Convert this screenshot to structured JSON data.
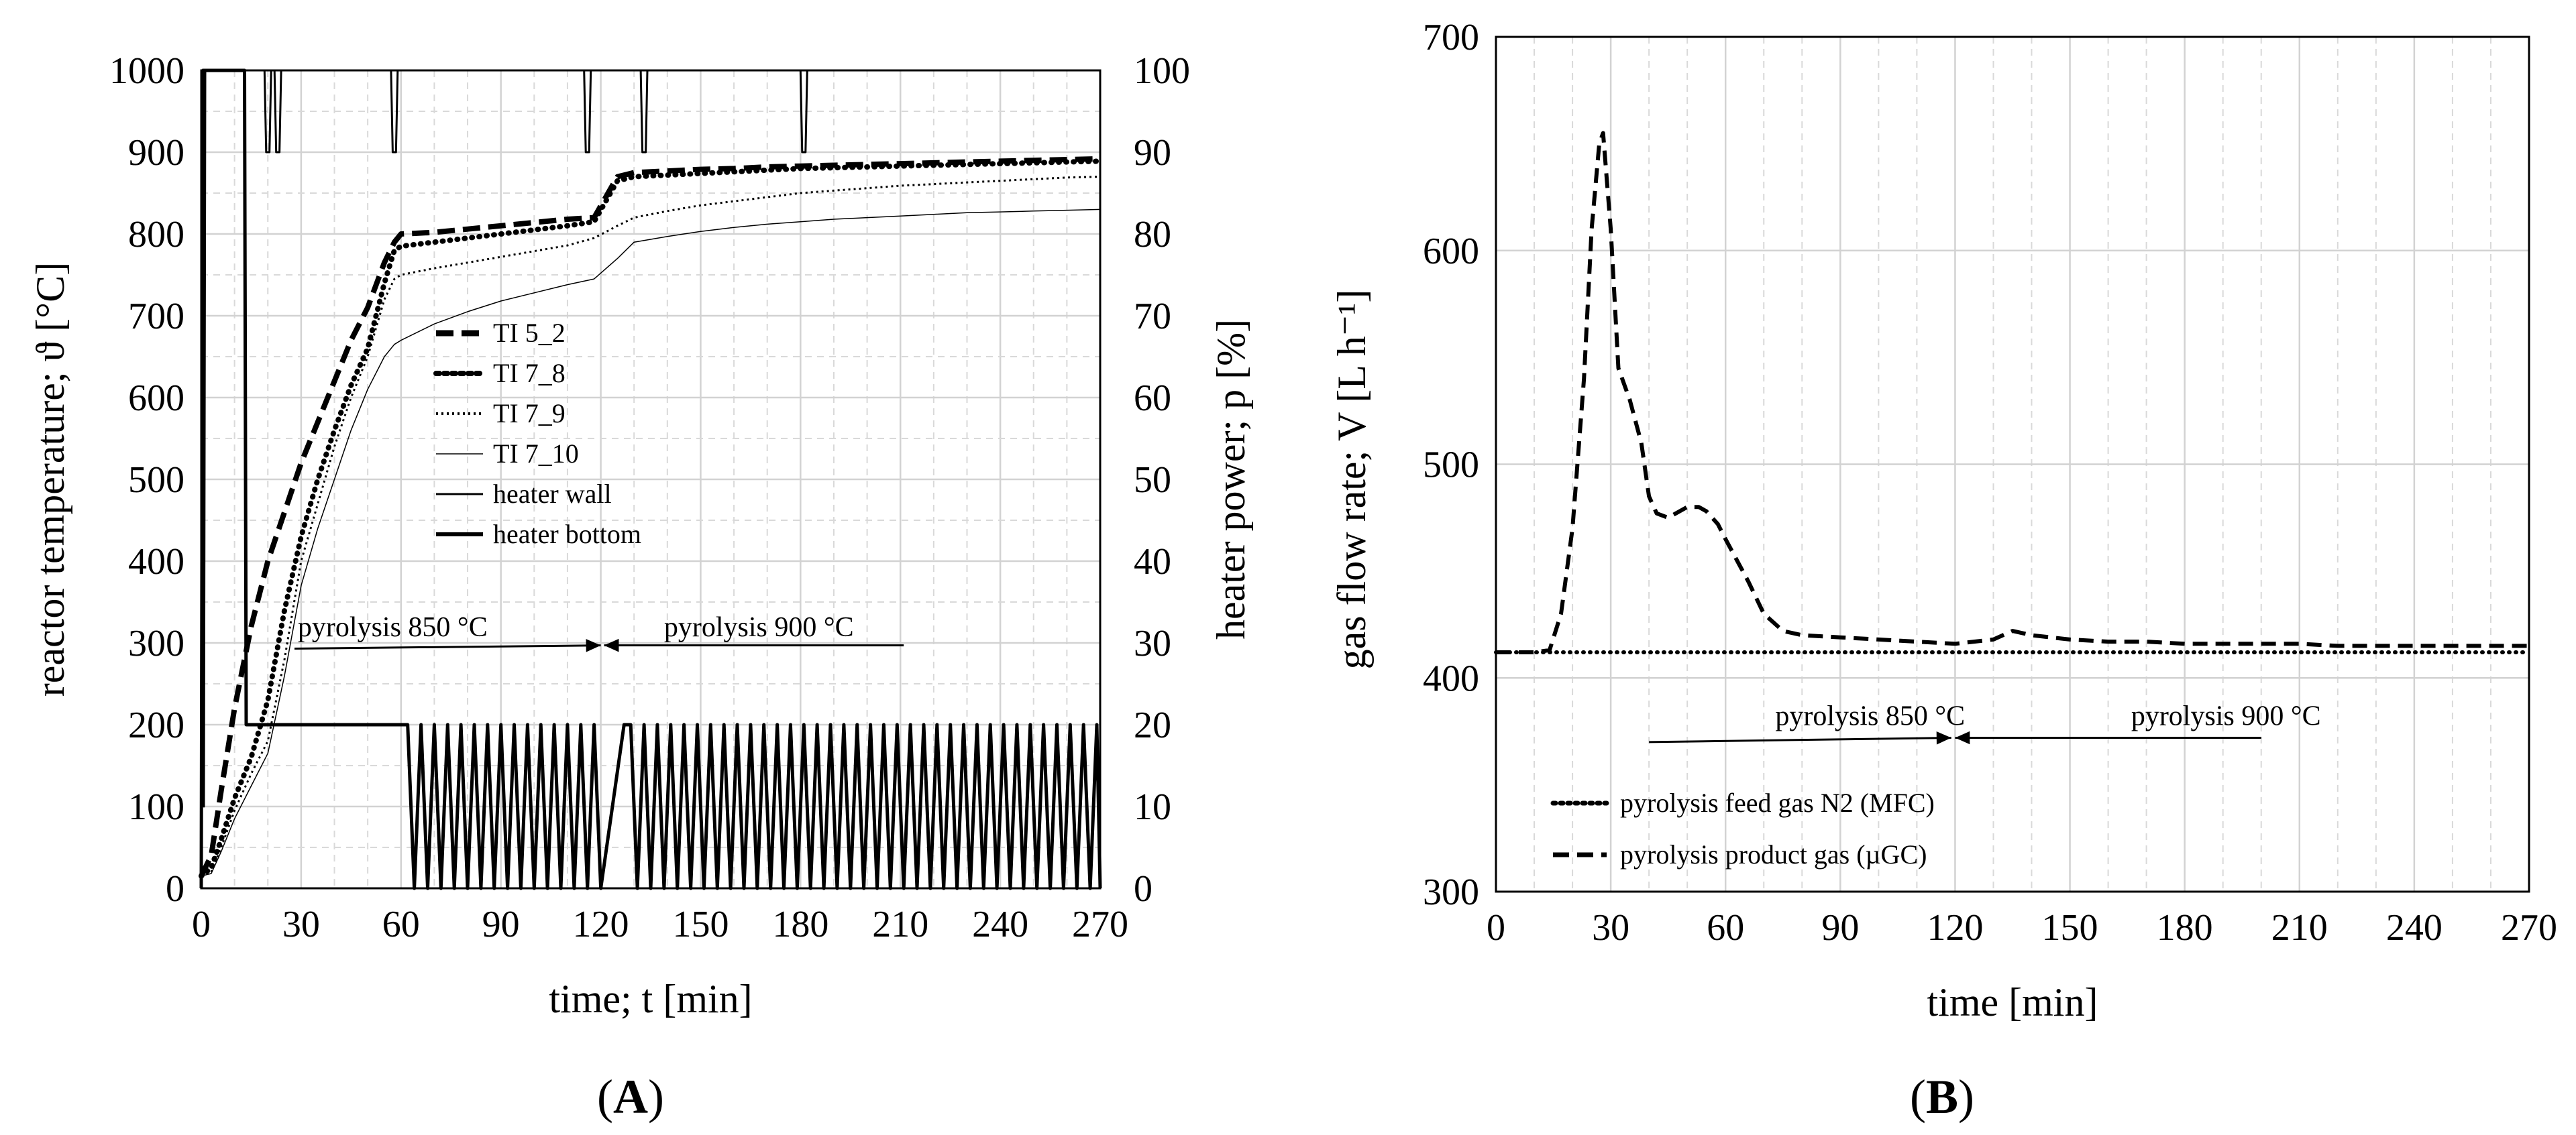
{
  "chart_data": [
    {
      "panel_label": "(A)",
      "panel_label_letter": "A",
      "type": "line",
      "title": "",
      "xlabel": "time; t [min]",
      "ylabel": "reactor temperature; ϑ [°C]",
      "y2label": "heater power; p [%]",
      "xlim": [
        0,
        270
      ],
      "ylim": [
        0,
        1000
      ],
      "y2lim": [
        0,
        100
      ],
      "xticks": [
        "0",
        "30",
        "60",
        "90",
        "120",
        "150",
        "180",
        "210",
        "240",
        "270"
      ],
      "yticks": [
        "0",
        "100",
        "200",
        "300",
        "400",
        "500",
        "600",
        "700",
        "800",
        "900",
        "1000"
      ],
      "y2ticks": [
        "0",
        "10",
        "20",
        "30",
        "40",
        "50",
        "60",
        "70",
        "80",
        "90",
        "100"
      ],
      "grid": true,
      "legend_position": "center-left",
      "annotations": [
        {
          "text": "pyrolysis 850 °C",
          "x": 29,
          "y": 308
        },
        {
          "text": "pyrolysis 900 °C",
          "x": 139,
          "y": 308
        }
      ],
      "arrows": [
        {
          "from": [
            28,
            293
          ],
          "to": [
            120,
            297
          ]
        },
        {
          "from": [
            211,
            297
          ],
          "to": [
            121,
            297
          ]
        }
      ],
      "series": [
        {
          "name": "TI 5_2",
          "axis": "left",
          "style": "dashed-thick",
          "x": [
            0,
            3,
            6,
            10,
            15,
            20,
            25,
            30,
            35,
            40,
            45,
            50,
            55,
            58,
            60,
            70,
            80,
            90,
            100,
            110,
            118,
            125,
            130,
            140,
            150,
            160,
            170,
            180,
            190,
            200,
            210,
            220,
            230,
            240,
            250,
            260,
            270
          ],
          "y": [
            15,
            40,
            120,
            220,
            320,
            400,
            460,
            520,
            570,
            620,
            670,
            710,
            765,
            790,
            800,
            802,
            806,
            810,
            814,
            818,
            820,
            870,
            875,
            877,
            879,
            880,
            882,
            883,
            884,
            885,
            886,
            887,
            888,
            889,
            890,
            891,
            892
          ]
        },
        {
          "name": "TI 7_8",
          "axis": "left",
          "style": "dotted-thick",
          "x": [
            0,
            3,
            6,
            10,
            15,
            20,
            25,
            30,
            35,
            40,
            45,
            50,
            55,
            58,
            60,
            70,
            80,
            90,
            100,
            110,
            118,
            125,
            130,
            140,
            150,
            160,
            170,
            180,
            190,
            200,
            210,
            220,
            230,
            240,
            250,
            260,
            270
          ],
          "y": [
            15,
            25,
            60,
            110,
            160,
            230,
            340,
            430,
            500,
            560,
            615,
            660,
            740,
            780,
            785,
            790,
            795,
            800,
            805,
            810,
            815,
            865,
            870,
            872,
            874,
            876,
            878,
            880,
            881,
            882,
            883,
            884,
            885,
            886,
            887,
            888,
            889
          ]
        },
        {
          "name": "TI 7_9",
          "axis": "left",
          "style": "dotted-thin",
          "x": [
            0,
            3,
            6,
            10,
            15,
            20,
            25,
            30,
            35,
            40,
            45,
            50,
            55,
            58,
            60,
            70,
            80,
            90,
            100,
            110,
            118,
            125,
            130,
            140,
            150,
            160,
            170,
            180,
            190,
            200,
            210,
            220,
            230,
            240,
            250,
            260,
            270
          ],
          "y": [
            15,
            20,
            50,
            95,
            140,
            180,
            280,
            400,
            470,
            540,
            600,
            650,
            720,
            745,
            750,
            758,
            765,
            772,
            779,
            786,
            795,
            810,
            820,
            828,
            835,
            840,
            845,
            850,
            853,
            856,
            859,
            861,
            863,
            865,
            867,
            869,
            870
          ]
        },
        {
          "name": "TI 7_10",
          "axis": "left",
          "style": "thin",
          "x": [
            0,
            3,
            6,
            10,
            15,
            20,
            25,
            30,
            35,
            40,
            45,
            50,
            55,
            58,
            60,
            70,
            80,
            90,
            100,
            110,
            118,
            125,
            130,
            140,
            150,
            160,
            170,
            180,
            190,
            200,
            210,
            220,
            230,
            240,
            250,
            260,
            270
          ],
          "y": [
            15,
            18,
            45,
            85,
            125,
            165,
            260,
            370,
            440,
            500,
            560,
            610,
            650,
            665,
            670,
            690,
            705,
            718,
            728,
            738,
            745,
            770,
            790,
            797,
            803,
            808,
            812,
            815,
            818,
            820,
            822,
            824,
            826,
            827,
            828,
            829,
            830
          ]
        },
        {
          "name": "heater wall",
          "axis": "right",
          "style": "thin-solid",
          "x": [
            0,
            0.5,
            0.8,
            1.2,
            1.6,
            19,
            19.5,
            20.5,
            21,
            22,
            22.5,
            23.5,
            24,
            57,
            57.5,
            58.5,
            59,
            115,
            115.5,
            116.5,
            117,
            132,
            132.5,
            133.5,
            134,
            180,
            180.5,
            181.5,
            182,
            270
          ],
          "y": [
            0,
            100,
            10,
            100,
            100,
            100,
            90,
            90,
            100,
            100,
            90,
            90,
            100,
            100,
            90,
            90,
            100,
            100,
            90,
            90,
            100,
            100,
            90,
            90,
            100,
            100,
            90,
            90,
            100,
            100
          ]
        },
        {
          "name": "heater bottom",
          "axis": "right",
          "style": "solid",
          "x": [
            0,
            0.5,
            1,
            13,
            13.5,
            59,
            60,
            62,
            64,
            66,
            68,
            70,
            72,
            74,
            76,
            78,
            80,
            82,
            84,
            86,
            88,
            90,
            92,
            94,
            96,
            98,
            100,
            102,
            104,
            106,
            108,
            110,
            112,
            114,
            116,
            118,
            120,
            127,
            129,
            131,
            133,
            135,
            137,
            139,
            141,
            143,
            145,
            147,
            149,
            151,
            153,
            155,
            157,
            159,
            161,
            163,
            165,
            167,
            169,
            171,
            173,
            175,
            177,
            179,
            181,
            183,
            185,
            187,
            189,
            191,
            193,
            195,
            197,
            199,
            201,
            203,
            205,
            207,
            209,
            211,
            213,
            215,
            217,
            219,
            221,
            223,
            225,
            227,
            229,
            231,
            233,
            235,
            237,
            239,
            241,
            243,
            245,
            247,
            249,
            251,
            253,
            255,
            257,
            259,
            261,
            263,
            265,
            267,
            269,
            270
          ],
          "y": [
            0,
            100,
            100,
            100,
            20,
            20,
            20,
            20,
            0,
            20,
            0,
            20,
            0,
            20,
            0,
            20,
            0,
            20,
            0,
            20,
            0,
            20,
            0,
            20,
            0,
            20,
            0,
            20,
            0,
            20,
            0,
            20,
            0,
            20,
            0,
            20,
            0,
            20,
            20,
            0,
            20,
            0,
            20,
            0,
            20,
            0,
            20,
            0,
            20,
            0,
            20,
            0,
            20,
            0,
            20,
            0,
            20,
            0,
            20,
            0,
            20,
            0,
            20,
            0,
            20,
            0,
            20,
            0,
            20,
            0,
            20,
            0,
            20,
            0,
            20,
            0,
            20,
            0,
            20,
            0,
            20,
            0,
            20,
            0,
            20,
            0,
            20,
            0,
            20,
            0,
            20,
            0,
            20,
            0,
            20,
            0,
            20,
            0,
            20,
            0,
            20,
            0,
            20,
            0,
            20,
            0,
            20,
            0,
            20,
            0
          ]
        }
      ]
    },
    {
      "panel_label": "(B)",
      "panel_label_letter": "B",
      "type": "line",
      "title": "",
      "xlabel": "time [min]",
      "ylabel": "gas flow rate; V [L h⁻¹]",
      "xlim": [
        0,
        270
      ],
      "ylim": [
        300,
        700
      ],
      "xticks": [
        "0",
        "30",
        "60",
        "90",
        "120",
        "150",
        "180",
        "210",
        "240",
        "270"
      ],
      "yticks": [
        "300",
        "400",
        "500",
        "600",
        "700"
      ],
      "grid": true,
      "legend_position": "bottom-left",
      "annotations": [
        {
          "text": "pyrolysis 850 °C",
          "x": 73,
          "y": 378
        },
        {
          "text": "pyrolysis 900 °C",
          "x": 166,
          "y": 378
        }
      ],
      "arrows": [
        {
          "from": [
            40,
            370
          ],
          "to": [
            119,
            372
          ]
        },
        {
          "from": [
            200,
            372
          ],
          "to": [
            120,
            372
          ]
        }
      ],
      "series": [
        {
          "name": "pyrolysis feed gas N2 (MFC)",
          "style": "dotted",
          "x": [
            0,
            30,
            60,
            90,
            120,
            150,
            180,
            210,
            240,
            270
          ],
          "y": [
            412,
            412,
            412,
            412,
            412,
            412,
            412,
            412,
            412,
            412
          ]
        },
        {
          "name": "pyrolysis product gas (µGC)",
          "style": "dashed",
          "x": [
            0,
            10,
            14,
            17,
            20,
            23,
            25,
            27,
            28,
            30,
            32,
            35,
            38,
            40,
            42,
            45,
            48,
            50,
            53,
            55,
            58,
            60,
            63,
            66,
            70,
            75,
            80,
            90,
            100,
            110,
            120,
            130,
            135,
            140,
            150,
            160,
            170,
            180,
            190,
            200,
            210,
            220,
            230,
            240,
            250,
            260,
            270
          ],
          "y": [
            412,
            412,
            413,
            430,
            470,
            540,
            610,
            650,
            655,
            610,
            545,
            530,
            510,
            485,
            477,
            475,
            478,
            480,
            480,
            478,
            472,
            465,
            455,
            445,
            430,
            422,
            420,
            419,
            418,
            417,
            416,
            418,
            422,
            420,
            418,
            417,
            417,
            416,
            416,
            416,
            416,
            415,
            415,
            415,
            415,
            415,
            415
          ]
        }
      ]
    }
  ]
}
